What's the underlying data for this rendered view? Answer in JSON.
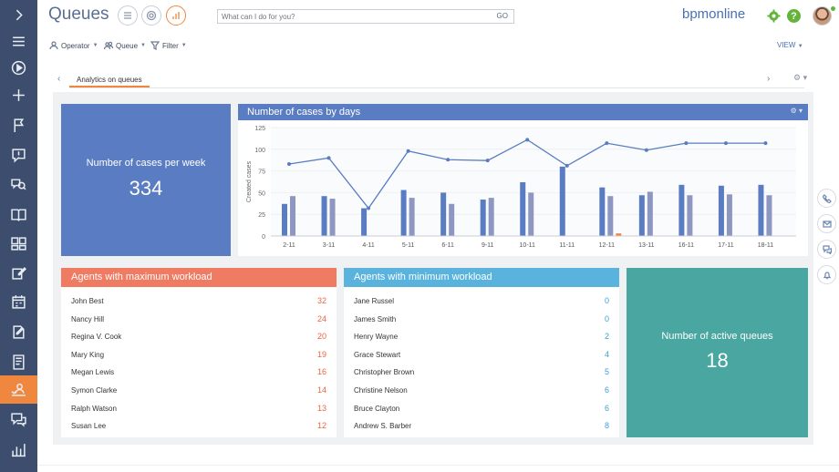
{
  "header": {
    "title": "Queues",
    "search_placeholder": "What can I do for you?",
    "search_go": "GO",
    "brand": "bpmonline",
    "help": "?"
  },
  "toolbar": {
    "operator": "Operator",
    "queue": "Queue",
    "filter": "Filter",
    "view": "VIEW"
  },
  "tabs": {
    "active": "Analytics on queues"
  },
  "tiles": {
    "cases_per_week": {
      "caption": "Number of cases per week",
      "value": "334"
    },
    "active_queues": {
      "caption": "Number of active queues",
      "value": "18"
    }
  },
  "chart": {
    "title": "Number of cases by days"
  },
  "chart_data": {
    "type": "bar",
    "ylabel": "Created cases",
    "ylim": [
      0,
      125
    ],
    "yticks": [
      0,
      25,
      50,
      75,
      100,
      125
    ],
    "categories": [
      "2-11",
      "3-11",
      "4-11",
      "5-11",
      "6-11",
      "9-11",
      "10-11",
      "11-11",
      "12-11",
      "13-11",
      "16-11",
      "17-11",
      "18-11"
    ],
    "series": [
      {
        "values": [
          37,
          46,
          32,
          53,
          50,
          42,
          62,
          80,
          56,
          47,
          59,
          58,
          59
        ]
      },
      {
        "values": [
          46,
          43,
          null,
          44,
          37,
          44,
          50,
          null,
          46,
          51,
          47,
          48,
          47
        ]
      },
      {
        "values": [
          null,
          null,
          null,
          null,
          null,
          null,
          null,
          null,
          3,
          null,
          null,
          null,
          null
        ]
      },
      {
        "type": "line",
        "values": [
          83,
          90,
          32,
          98,
          88,
          87,
          111,
          81,
          107,
          99,
          107,
          107,
          107
        ]
      }
    ],
    "colors": [
      "#5a7cc2",
      "#8e96c2",
      "#f0873f",
      "#5a7cc2"
    ]
  },
  "max_workload": {
    "title": "Agents with maximum workload",
    "color": "#ef7b62",
    "rows": [
      {
        "name": "John Best",
        "value": "32"
      },
      {
        "name": "Nancy Hill",
        "value": "24"
      },
      {
        "name": "Regina V. Cook",
        "value": "20"
      },
      {
        "name": "Mary King",
        "value": "19"
      },
      {
        "name": "Megan Lewis",
        "value": "16"
      },
      {
        "name": "Symon Clarke",
        "value": "14"
      },
      {
        "name": "Ralph Watson",
        "value": "13"
      },
      {
        "name": "Susan Lee",
        "value": "12"
      }
    ]
  },
  "min_workload": {
    "title": "Agents with minimum workload",
    "color": "#5ab3dd",
    "rows": [
      {
        "name": "Jane Russel",
        "value": "0"
      },
      {
        "name": "James Smith",
        "value": "0"
      },
      {
        "name": "Henry Wayne",
        "value": "2"
      },
      {
        "name": "Grace Stewart",
        "value": "4"
      },
      {
        "name": "Christopher Brown",
        "value": "5"
      },
      {
        "name": "Christine Nelson",
        "value": "6"
      },
      {
        "name": "Bruce Clayton",
        "value": "6"
      },
      {
        "name": "Andrew S. Barber",
        "value": "8"
      }
    ]
  },
  "icons": {
    "sidebar": [
      "chevron-right-icon",
      "menu-icon",
      "play-icon",
      "plus-icon",
      "flag-icon",
      "alert-icon",
      "search-chat-icon",
      "book-icon",
      "dashboard-icon",
      "edit-icon",
      "calendar-icon",
      "document-edit-icon",
      "report-icon",
      "queues-icon",
      "chat-icon",
      "bar-chart-icon"
    ],
    "rail": [
      "phone-icon",
      "mail-icon",
      "chat-icon",
      "bell-icon"
    ]
  }
}
